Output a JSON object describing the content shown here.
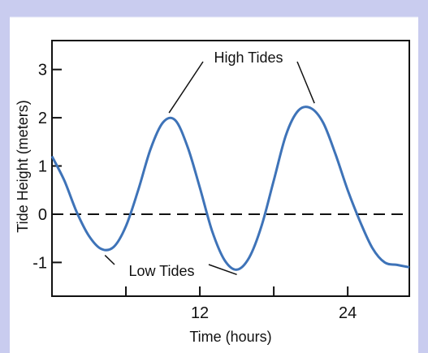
{
  "colors": {
    "frame_background": "#c9ccef",
    "plot_background": "#ffffff",
    "curve": "#3e73b8",
    "axis": "#111111",
    "zero_line": "#111111"
  },
  "chart_data": {
    "type": "line",
    "title": "",
    "xlabel": "Time (hours)",
    "ylabel": "Tide Height (meters)",
    "xlim": [
      0,
      29
    ],
    "ylim": [
      -1.7,
      3.6
    ],
    "x_ticks": [
      6,
      12,
      18,
      24
    ],
    "x_tick_labels": [
      "12",
      "24"
    ],
    "x_tick_label_values": [
      12,
      24
    ],
    "y_ticks": [
      -1,
      0,
      1,
      2,
      3
    ],
    "y_tick_labels": [
      "-1",
      "0",
      "1",
      "2",
      "3"
    ],
    "grid": false,
    "reference_line": {
      "y": 0,
      "style": "dashed"
    },
    "series": [
      {
        "x": [
          0,
          1,
          2,
          3,
          4,
          5,
          6,
          7,
          8,
          9,
          10,
          11,
          12,
          13,
          14,
          15,
          16,
          17,
          18,
          19,
          20,
          21,
          22,
          23,
          24,
          25,
          26,
          27,
          28,
          29
        ],
        "values": [
          1.2,
          0.7,
          0.05,
          -0.45,
          -0.72,
          -0.68,
          -0.25,
          0.5,
          1.35,
          1.9,
          1.95,
          1.4,
          0.55,
          -0.35,
          -0.95,
          -1.15,
          -0.9,
          -0.25,
          0.7,
          1.65,
          2.15,
          2.2,
          1.9,
          1.25,
          0.5,
          -0.15,
          -0.7,
          -1.0,
          -1.05,
          -1.1
        ]
      }
    ],
    "annotations": [
      {
        "text": "High Tides",
        "points": [
          [
            9.5,
            2.0
          ],
          [
            21.3,
            2.2
          ]
        ]
      },
      {
        "text": "Low Tides",
        "points": [
          [
            4.3,
            -0.75
          ],
          [
            15.0,
            -1.15
          ]
        ]
      }
    ]
  }
}
